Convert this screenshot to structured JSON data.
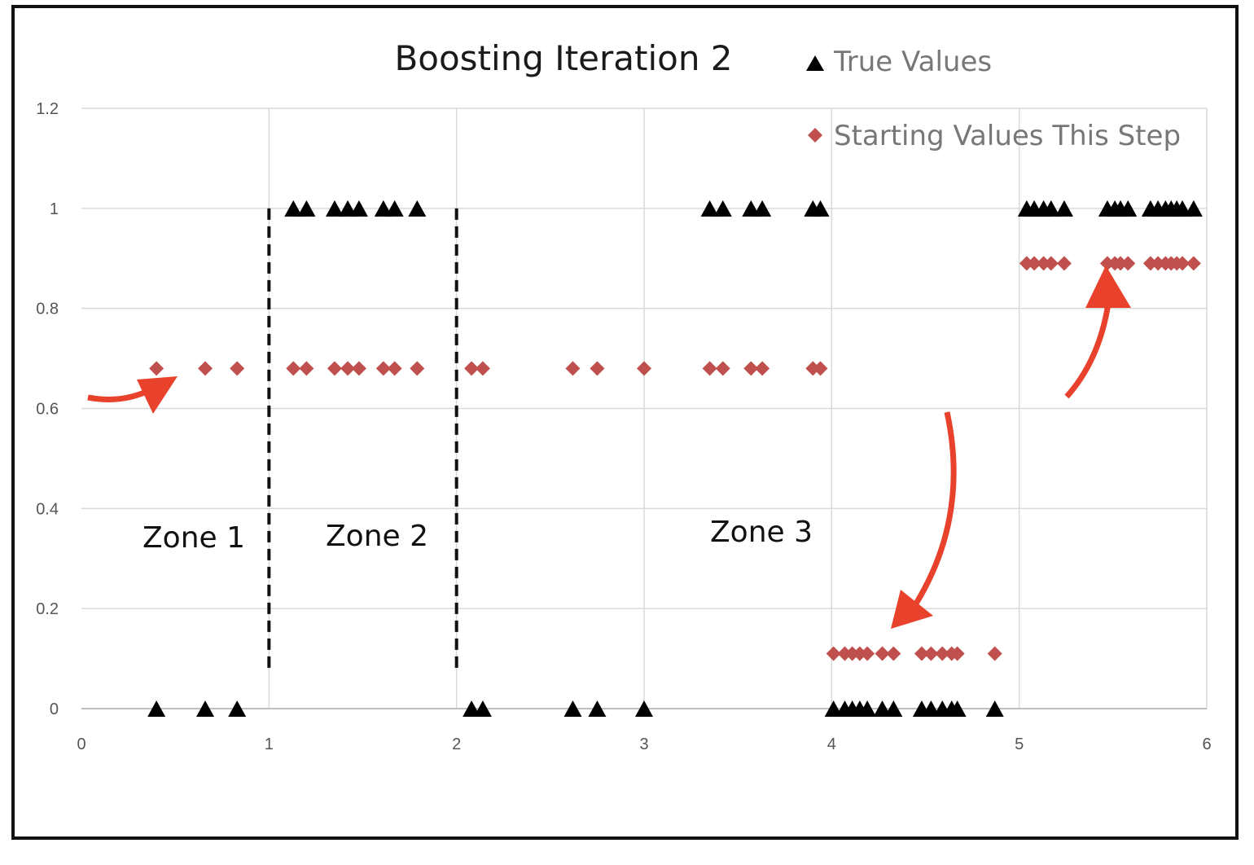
{
  "chart_data": {
    "type": "scatter",
    "title": "Boosting Iteration 2",
    "xlabel": "",
    "ylabel": "",
    "xlim": [
      0,
      6
    ],
    "ylim": [
      0,
      1.2
    ],
    "x_ticks": [
      "0",
      "1",
      "2",
      "3",
      "4",
      "5",
      "6"
    ],
    "y_ticks": [
      "0",
      "0.2",
      "0.4",
      "0.6",
      "0.8",
      "1",
      "1.2"
    ],
    "x_tick_values": [
      0,
      1,
      2,
      3,
      4,
      5,
      6
    ],
    "y_tick_values": [
      0,
      0.2,
      0.4,
      0.6,
      0.8,
      1.0,
      1.2
    ],
    "grid": true,
    "legend_position": "top-right",
    "series": [
      {
        "name": "True Values",
        "marker": "triangle",
        "color": "#000000",
        "points": [
          [
            0.4,
            0
          ],
          [
            0.66,
            0
          ],
          [
            0.83,
            0
          ],
          [
            1.13,
            1
          ],
          [
            1.2,
            1
          ],
          [
            1.35,
            1
          ],
          [
            1.42,
            1
          ],
          [
            1.48,
            1
          ],
          [
            1.61,
            1
          ],
          [
            1.67,
            1
          ],
          [
            1.79,
            1
          ],
          [
            2.08,
            0
          ],
          [
            2.14,
            0
          ],
          [
            2.62,
            0
          ],
          [
            2.75,
            0
          ],
          [
            3.0,
            0
          ],
          [
            3.35,
            1
          ],
          [
            3.42,
            1
          ],
          [
            3.57,
            1
          ],
          [
            3.63,
            1
          ],
          [
            3.9,
            1
          ],
          [
            3.94,
            1
          ],
          [
            4.01,
            0
          ],
          [
            4.07,
            0
          ],
          [
            4.11,
            0
          ],
          [
            4.15,
            0
          ],
          [
            4.19,
            0
          ],
          [
            4.27,
            0
          ],
          [
            4.33,
            0
          ],
          [
            4.48,
            0
          ],
          [
            4.53,
            0
          ],
          [
            4.59,
            0
          ],
          [
            4.64,
            0
          ],
          [
            4.67,
            0
          ],
          [
            4.87,
            0
          ],
          [
            5.04,
            1
          ],
          [
            5.08,
            1
          ],
          [
            5.13,
            1
          ],
          [
            5.17,
            1
          ],
          [
            5.24,
            1
          ],
          [
            5.47,
            1
          ],
          [
            5.51,
            1
          ],
          [
            5.54,
            1
          ],
          [
            5.58,
            1
          ],
          [
            5.7,
            1
          ],
          [
            5.74,
            1
          ],
          [
            5.78,
            1
          ],
          [
            5.81,
            1
          ],
          [
            5.84,
            1
          ],
          [
            5.87,
            1
          ],
          [
            5.93,
            1
          ]
        ]
      },
      {
        "name": "Starting Values This Step",
        "marker": "diamond",
        "color": "#c0504d",
        "points": [
          [
            0.4,
            0.68
          ],
          [
            0.66,
            0.68
          ],
          [
            0.83,
            0.68
          ],
          [
            1.13,
            0.68
          ],
          [
            1.2,
            0.68
          ],
          [
            1.35,
            0.68
          ],
          [
            1.42,
            0.68
          ],
          [
            1.48,
            0.68
          ],
          [
            1.61,
            0.68
          ],
          [
            1.67,
            0.68
          ],
          [
            1.79,
            0.68
          ],
          [
            2.08,
            0.68
          ],
          [
            2.14,
            0.68
          ],
          [
            2.62,
            0.68
          ],
          [
            2.75,
            0.68
          ],
          [
            3.0,
            0.68
          ],
          [
            3.35,
            0.68
          ],
          [
            3.42,
            0.68
          ],
          [
            3.57,
            0.68
          ],
          [
            3.63,
            0.68
          ],
          [
            3.9,
            0.68
          ],
          [
            3.94,
            0.68
          ],
          [
            4.01,
            0.11
          ],
          [
            4.07,
            0.11
          ],
          [
            4.11,
            0.11
          ],
          [
            4.15,
            0.11
          ],
          [
            4.19,
            0.11
          ],
          [
            4.27,
            0.11
          ],
          [
            4.33,
            0.11
          ],
          [
            4.48,
            0.11
          ],
          [
            4.53,
            0.11
          ],
          [
            4.59,
            0.11
          ],
          [
            4.64,
            0.11
          ],
          [
            4.67,
            0.11
          ],
          [
            4.87,
            0.11
          ],
          [
            5.04,
            0.89
          ],
          [
            5.08,
            0.89
          ],
          [
            5.13,
            0.89
          ],
          [
            5.17,
            0.89
          ],
          [
            5.24,
            0.89
          ],
          [
            5.47,
            0.89
          ],
          [
            5.51,
            0.89
          ],
          [
            5.54,
            0.89
          ],
          [
            5.58,
            0.89
          ],
          [
            5.7,
            0.89
          ],
          [
            5.74,
            0.89
          ],
          [
            5.78,
            0.89
          ],
          [
            5.81,
            0.89
          ],
          [
            5.84,
            0.89
          ],
          [
            5.87,
            0.89
          ],
          [
            5.93,
            0.89
          ]
        ]
      }
    ],
    "annotations": {
      "zone_labels": [
        "Zone 1",
        "Zone 2",
        "Zone 3"
      ],
      "zone_dividers_x": [
        1,
        2
      ],
      "zone_divider_y_range": [
        0.08,
        1.0
      ],
      "arrow_color": "#e8412c"
    }
  }
}
